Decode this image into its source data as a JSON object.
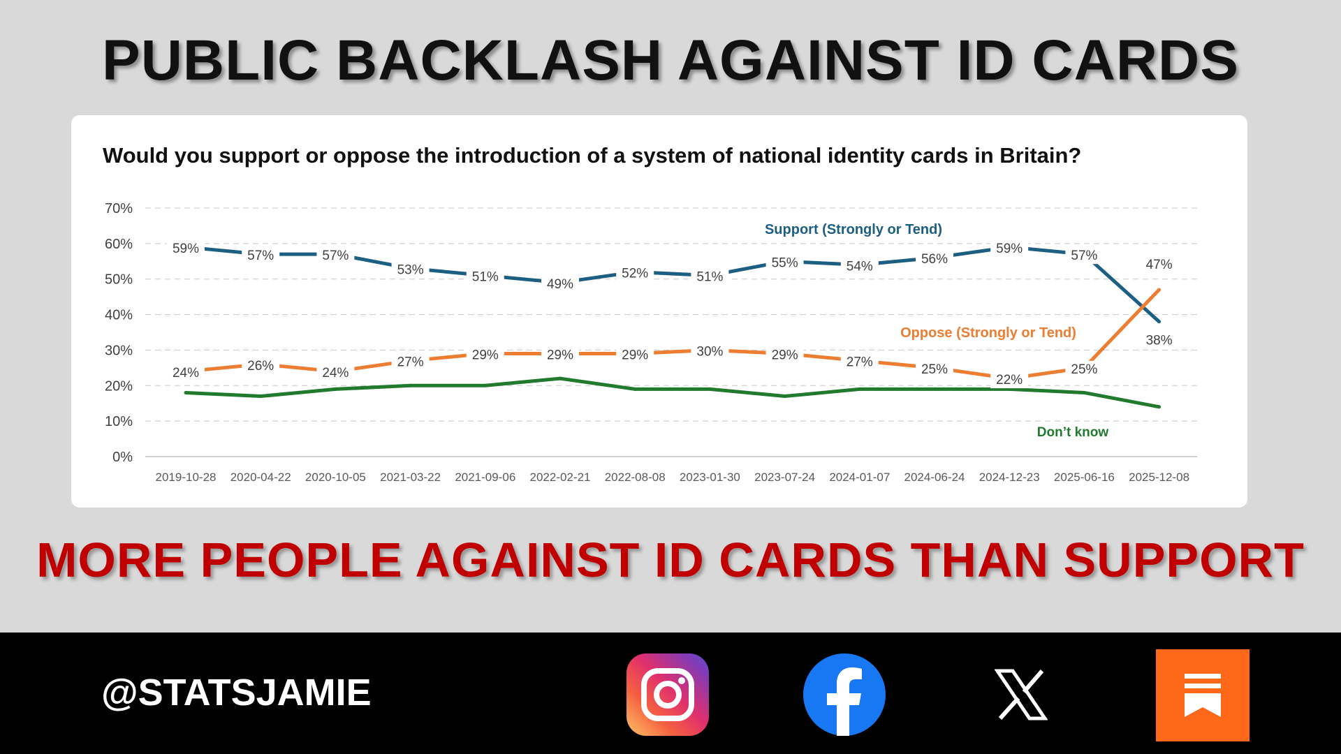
{
  "headline": "PUBLIC BACKLASH AGAINST ID CARDS",
  "subheadline": "MORE PEOPLE AGAINST ID CARDS THAN SUPPORT",
  "footer": {
    "handle": "@STATSJAMIE"
  },
  "social_icons": [
    "instagram-icon",
    "facebook-icon",
    "x-icon",
    "substack-icon"
  ],
  "chart_data": {
    "type": "line",
    "title": "Would you support or oppose the introduction of a system of national identity cards in Britain?",
    "x": [
      "2019-10-28",
      "2020-04-22",
      "2020-10-05",
      "2021-03-22",
      "2021-09-06",
      "2022-02-21",
      "2022-08-08",
      "2023-01-30",
      "2023-07-24",
      "2024-01-07",
      "2024-06-24",
      "2024-12-23",
      "2025-06-16",
      "2025-12-08"
    ],
    "ylim": [
      0,
      70
    ],
    "yticks": [
      "0%",
      "10%",
      "20%",
      "30%",
      "40%",
      "50%",
      "60%",
      "70%"
    ],
    "grid": true,
    "series": [
      {
        "name": "Support (Strongly or Tend)",
        "color": "#1d5f82",
        "values": [
          59,
          57,
          57,
          53,
          51,
          49,
          52,
          51,
          55,
          54,
          56,
          59,
          57,
          38
        ],
        "labels": [
          "59%",
          "57%",
          "57%",
          "53%",
          "51%",
          "49%",
          "52%",
          "51%",
          "55%",
          "54%",
          "56%",
          "59%",
          "57%",
          "38%"
        ]
      },
      {
        "name": "Oppose (Strongly or Tend)",
        "color": "#ed7d31",
        "values": [
          24,
          26,
          24,
          27,
          29,
          29,
          29,
          30,
          29,
          27,
          25,
          22,
          25,
          47
        ],
        "labels": [
          "24%",
          "26%",
          "24%",
          "27%",
          "29%",
          "29%",
          "29%",
          "30%",
          "29%",
          "27%",
          "25%",
          "22%",
          "25%",
          "47%"
        ]
      },
      {
        "name": "Don’t know",
        "color": "#217a2e",
        "values": [
          18,
          17,
          19,
          20,
          20,
          22,
          19,
          19,
          17,
          19,
          19,
          19,
          18,
          14
        ]
      }
    ]
  }
}
